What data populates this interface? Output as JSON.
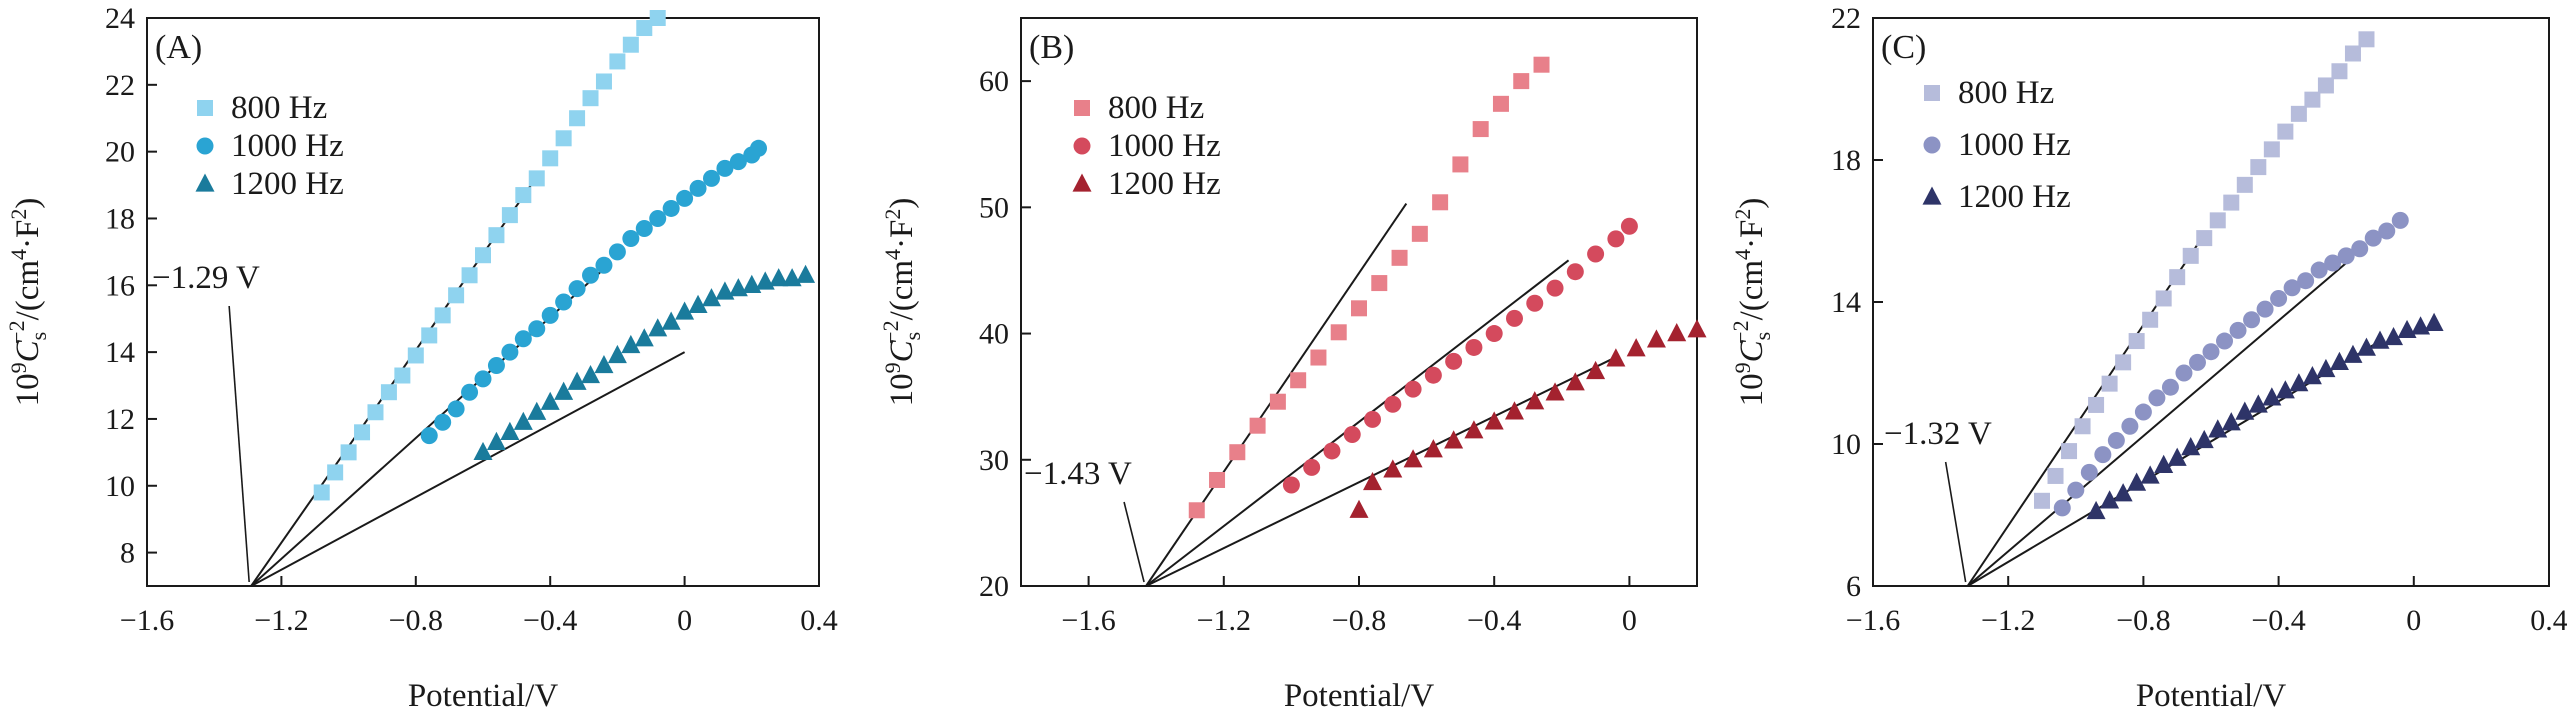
{
  "chart_data": [
    {
      "type": "scatter",
      "panel_label": "(A)",
      "xlabel": "Potential/V",
      "ylabel": "10⁹Cₛ⁻²/(cm⁴·F²)",
      "ylabel_parts": {
        "prefix": "10",
        "sup1": "9",
        "italic": "C",
        "sub": "s",
        "sup2": "−2",
        "unit_open": "/(cm",
        "unit_sup": "4",
        "unit_close": "·F",
        "unit_sup2": "2",
        "unit_end": ")"
      },
      "xlim": [
        -1.6,
        0.4
      ],
      "ylim": [
        7,
        24
      ],
      "xticks": [
        -1.6,
        -1.2,
        -0.8,
        -0.4,
        0,
        0.4
      ],
      "xtick_labels": [
        "−1.6",
        "−1.2",
        "−0.8",
        "−0.4",
        "0",
        "0.4"
      ],
      "yticks": [
        8,
        10,
        12,
        14,
        16,
        18,
        20,
        22,
        24
      ],
      "ytick_labels": [
        "8",
        "10",
        "12",
        "14",
        "16",
        "18",
        "20",
        "22",
        "24"
      ],
      "annotation": {
        "text": "−1.29 V",
        "x": -1.29,
        "y": 7
      },
      "legend_position": "top-left",
      "series": [
        {
          "name": "800 Hz",
          "marker": "square",
          "color": "#8fd3ef",
          "x": [
            -1.08,
            -1.04,
            -1.0,
            -0.96,
            -0.92,
            -0.88,
            -0.84,
            -0.8,
            -0.76,
            -0.72,
            -0.68,
            -0.64,
            -0.6,
            -0.56,
            -0.52,
            -0.48,
            -0.44,
            -0.4,
            -0.36,
            -0.32,
            -0.28,
            -0.24,
            -0.2,
            -0.16,
            -0.12,
            -0.08
          ],
          "y": [
            9.8,
            10.4,
            11.0,
            11.6,
            12.2,
            12.8,
            13.3,
            13.9,
            14.5,
            15.1,
            15.7,
            16.3,
            16.9,
            17.5,
            18.1,
            18.7,
            19.2,
            19.8,
            20.4,
            21.0,
            21.6,
            22.1,
            22.7,
            23.2,
            23.7,
            24.0
          ],
          "fit": {
            "x": [
              -1.29,
              -0.45
            ],
            "y": [
              7.0,
              19.1
            ]
          }
        },
        {
          "name": "1000 Hz",
          "marker": "circle",
          "color": "#2aa4d3",
          "x": [
            -0.76,
            -0.72,
            -0.68,
            -0.64,
            -0.6,
            -0.56,
            -0.52,
            -0.48,
            -0.44,
            -0.4,
            -0.36,
            -0.32,
            -0.28,
            -0.24,
            -0.2,
            -0.16,
            -0.12,
            -0.08,
            -0.04,
            0.0,
            0.04,
            0.08,
            0.12,
            0.16,
            0.2,
            0.22
          ],
          "y": [
            11.5,
            11.9,
            12.3,
            12.8,
            13.2,
            13.6,
            14.0,
            14.4,
            14.7,
            15.1,
            15.5,
            15.9,
            16.3,
            16.6,
            17.0,
            17.4,
            17.7,
            18.0,
            18.3,
            18.6,
            18.9,
            19.2,
            19.5,
            19.7,
            19.9,
            20.1
          ],
          "fit": {
            "x": [
              -1.29,
              -0.25
            ],
            "y": [
              7.0,
              16.4
            ]
          }
        },
        {
          "name": "1200 Hz",
          "marker": "triangle",
          "color": "#1a7b9c",
          "x": [
            -0.6,
            -0.56,
            -0.52,
            -0.48,
            -0.44,
            -0.4,
            -0.36,
            -0.32,
            -0.28,
            -0.24,
            -0.2,
            -0.16,
            -0.12,
            -0.08,
            -0.04,
            0.0,
            0.04,
            0.08,
            0.12,
            0.16,
            0.2,
            0.24,
            0.28,
            0.32,
            0.36
          ],
          "y": [
            11.0,
            11.3,
            11.6,
            11.9,
            12.2,
            12.5,
            12.8,
            13.1,
            13.3,
            13.6,
            13.9,
            14.2,
            14.4,
            14.7,
            14.9,
            15.2,
            15.4,
            15.6,
            15.8,
            15.9,
            16.0,
            16.1,
            16.2,
            16.2,
            16.3
          ],
          "fit": {
            "x": [
              -1.29,
              0.0
            ],
            "y": [
              7.0,
              14.0
            ]
          }
        }
      ]
    },
    {
      "type": "scatter",
      "panel_label": "(B)",
      "xlabel": "Potential/V",
      "ylabel": "10⁹Cₛ⁻²/(cm⁴·F²)",
      "ylabel_parts": {
        "prefix": "10",
        "sup1": "9",
        "italic": "C",
        "sub": "s",
        "sup2": "−2",
        "unit_open": "/(cm",
        "unit_sup": "4",
        "unit_close": "·F",
        "unit_sup2": "2",
        "unit_end": ")"
      },
      "xlim": [
        -1.8,
        0.2
      ],
      "ylim": [
        20,
        65
      ],
      "xticks": [
        -1.6,
        -1.2,
        -0.8,
        -0.4,
        0
      ],
      "xtick_labels": [
        "−1.6",
        "−1.2",
        "−0.8",
        "−0.4",
        "0"
      ],
      "yticks": [
        20,
        30,
        40,
        50,
        60
      ],
      "ytick_labels": [
        "20",
        "30",
        "40",
        "50",
        "60"
      ],
      "annotation": {
        "text": "−1.43 V",
        "x": -1.43,
        "y": 20
      },
      "legend_position": "top-left",
      "series": [
        {
          "name": "800 Hz",
          "marker": "square",
          "color": "#e8808a",
          "x": [
            -1.28,
            -1.22,
            -1.16,
            -1.1,
            -1.04,
            -0.98,
            -0.92,
            -0.86,
            -0.8,
            -0.74,
            -0.68,
            -0.62,
            -0.56,
            -0.5,
            -0.44,
            -0.38,
            -0.32,
            -0.26
          ],
          "y": [
            26.0,
            28.4,
            30.6,
            32.7,
            34.6,
            36.3,
            38.1,
            40.1,
            42.0,
            44.0,
            46.0,
            47.9,
            50.4,
            53.4,
            56.2,
            58.2,
            60.0,
            61.3
          ],
          "fit": {
            "x": [
              -1.43,
              -0.66
            ],
            "y": [
              20.0,
              50.3
            ]
          }
        },
        {
          "name": "1000 Hz",
          "marker": "circle",
          "color": "#d44a5d",
          "x": [
            -1.0,
            -0.94,
            -0.88,
            -0.82,
            -0.76,
            -0.7,
            -0.64,
            -0.58,
            -0.52,
            -0.46,
            -0.4,
            -0.34,
            -0.28,
            -0.22,
            -0.16,
            -0.1,
            -0.04,
            0.0
          ],
          "y": [
            28.0,
            29.4,
            30.7,
            32.0,
            33.2,
            34.4,
            35.6,
            36.7,
            37.8,
            38.9,
            40.0,
            41.2,
            42.4,
            43.6,
            44.9,
            46.3,
            47.5,
            48.5
          ],
          "fit": {
            "x": [
              -1.43,
              -0.18
            ],
            "y": [
              20.0,
              45.8
            ]
          }
        },
        {
          "name": "1200 Hz",
          "marker": "triangle",
          "color": "#a4222f",
          "x": [
            -0.8,
            -0.76,
            -0.7,
            -0.64,
            -0.58,
            -0.52,
            -0.46,
            -0.4,
            -0.34,
            -0.28,
            -0.22,
            -0.16,
            -0.1,
            -0.04,
            0.02,
            0.08,
            0.14,
            0.2
          ],
          "y": [
            26.0,
            28.2,
            29.2,
            30.0,
            30.8,
            31.5,
            32.3,
            33.0,
            33.8,
            34.6,
            35.3,
            36.1,
            37.0,
            38.0,
            38.8,
            39.5,
            40.0,
            40.3
          ],
          "fit": {
            "x": [
              -1.43,
              -0.05
            ],
            "y": [
              20.0,
              38.0
            ]
          }
        }
      ]
    },
    {
      "type": "scatter",
      "panel_label": "(C)",
      "xlabel": "Potential/V",
      "ylabel": "10⁹Cₛ⁻²/(cm⁴·F²)",
      "ylabel_parts": {
        "prefix": "10",
        "sup1": "9",
        "italic": "C",
        "sub": "s",
        "sup2": "−2",
        "unit_open": "/(cm",
        "unit_sup": "4",
        "unit_close": "·F",
        "unit_sup2": "2",
        "unit_end": ")"
      },
      "xlim": [
        -1.6,
        0.4
      ],
      "ylim": [
        6,
        22
      ],
      "xticks": [
        -1.6,
        -1.2,
        -0.8,
        -0.4,
        0,
        0.4
      ],
      "xtick_labels": [
        "−1.6",
        "−1.2",
        "−0.8",
        "−0.4",
        "0",
        "0.4"
      ],
      "yticks": [
        6,
        10,
        14,
        18,
        22
      ],
      "ytick_labels": [
        "6",
        "10",
        "14",
        "18",
        "22"
      ],
      "annotation": {
        "text": "−1.32 V",
        "x": -1.32,
        "y": 6
      },
      "legend_position": "top-left",
      "series": [
        {
          "name": "800 Hz",
          "marker": "square",
          "color": "#b6bcdb",
          "x": [
            -1.1,
            -1.06,
            -1.02,
            -0.98,
            -0.94,
            -0.9,
            -0.86,
            -0.82,
            -0.78,
            -0.74,
            -0.7,
            -0.66,
            -0.62,
            -0.58,
            -0.54,
            -0.5,
            -0.46,
            -0.42,
            -0.38,
            -0.34,
            -0.3,
            -0.26,
            -0.22,
            -0.18,
            -0.14
          ],
          "y": [
            8.4,
            9.1,
            9.8,
            10.5,
            11.1,
            11.7,
            12.3,
            12.9,
            13.5,
            14.1,
            14.7,
            15.3,
            15.8,
            16.3,
            16.8,
            17.3,
            17.8,
            18.3,
            18.8,
            19.3,
            19.7,
            20.1,
            20.5,
            21.0,
            21.4
          ],
          "fit": {
            "x": [
              -1.32,
              -0.62
            ],
            "y": [
              6.0,
              15.9
            ]
          }
        },
        {
          "name": "1000 Hz",
          "marker": "circle",
          "color": "#8c93c4",
          "x": [
            -1.04,
            -1.0,
            -0.96,
            -0.92,
            -0.88,
            -0.84,
            -0.8,
            -0.76,
            -0.72,
            -0.68,
            -0.64,
            -0.6,
            -0.56,
            -0.52,
            -0.48,
            -0.44,
            -0.4,
            -0.36,
            -0.32,
            -0.28,
            -0.24,
            -0.2,
            -0.16,
            -0.12,
            -0.08,
            -0.04
          ],
          "y": [
            8.2,
            8.7,
            9.2,
            9.7,
            10.1,
            10.5,
            10.9,
            11.3,
            11.6,
            12.0,
            12.3,
            12.6,
            12.9,
            13.2,
            13.5,
            13.8,
            14.1,
            14.4,
            14.6,
            14.9,
            15.1,
            15.3,
            15.5,
            15.8,
            16.0,
            16.3
          ],
          "fit": {
            "x": [
              -1.32,
              -0.2
            ],
            "y": [
              6.0,
              15.1
            ]
          }
        },
        {
          "name": "1200 Hz",
          "marker": "triangle",
          "color": "#2e3468",
          "x": [
            -0.94,
            -0.9,
            -0.86,
            -0.82,
            -0.78,
            -0.74,
            -0.7,
            -0.66,
            -0.62,
            -0.58,
            -0.54,
            -0.5,
            -0.46,
            -0.42,
            -0.38,
            -0.34,
            -0.3,
            -0.26,
            -0.22,
            -0.18,
            -0.14,
            -0.1,
            -0.06,
            -0.02,
            0.02,
            0.06
          ],
          "y": [
            8.1,
            8.4,
            8.6,
            8.9,
            9.1,
            9.4,
            9.6,
            9.9,
            10.1,
            10.4,
            10.6,
            10.9,
            11.1,
            11.3,
            11.5,
            11.7,
            11.9,
            12.1,
            12.3,
            12.5,
            12.7,
            12.9,
            13.0,
            13.2,
            13.3,
            13.4
          ],
          "fit": {
            "x": [
              -1.32,
              -0.1
            ],
            "y": [
              6.0,
              12.9
            ]
          }
        }
      ]
    }
  ]
}
